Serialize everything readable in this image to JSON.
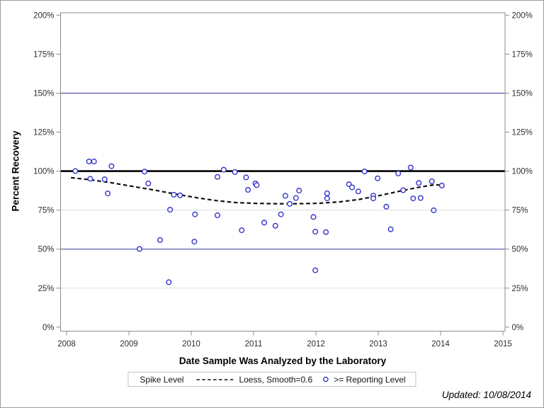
{
  "figure": {
    "footer_updated": "Updated: 10/08/2014"
  },
  "legend": {
    "items": [
      {
        "symbol": "none",
        "label": "Spike Level"
      },
      {
        "symbol": "dashed-line",
        "label": "Loess, Smooth=0.6"
      },
      {
        "symbol": "open-circle",
        "label": ">= Reporting Level"
      }
    ]
  },
  "chart_data": {
    "type": "scatter",
    "title": "",
    "xlabel": "Date Sample Was Analyzed by the Laboratory",
    "ylabel": "Percent Recovery",
    "x_tick_values": [
      2008,
      2009,
      2010,
      2011,
      2012,
      2013,
      2014,
      2015
    ],
    "x_tick_labels": [
      "2008",
      "2009",
      "2010",
      "2011",
      "2012",
      "2013",
      "2014",
      "2015"
    ],
    "y_tick_values": [
      0,
      25,
      50,
      75,
      100,
      125,
      150,
      175,
      200
    ],
    "y_tick_labels": [
      "0%",
      "25%",
      "50%",
      "75%",
      "100%",
      "125%",
      "150%",
      "175%",
      "200%"
    ],
    "xlim": [
      2007.9,
      2015.05
    ],
    "ylim_percent": [
      -2.6,
      201.6
    ],
    "layout_hints": {
      "y_axis_mirrored": true,
      "legend_position": "bottom-center",
      "grid": "partial"
    },
    "gridlines_percent": [
      25,
      75
    ],
    "gridline_color": "#dedede",
    "axis_color": "#8c8c8c",
    "tick_label_color": "#2f2f2f",
    "reference_lines": [
      {
        "name": "lower-reference-line",
        "y_percent": 50,
        "color": "#333399",
        "width": 1
      },
      {
        "name": "spike-level-line",
        "y_percent": 100,
        "color": "#000000",
        "width": 2.6
      },
      {
        "name": "upper-reference-line",
        "y_percent": 150,
        "color": "#333399",
        "width": 1
      }
    ],
    "series": [
      {
        "name": "Loess, Smooth=0.6",
        "type": "line",
        "line_style": "dashed",
        "color": "#0f0f0f",
        "points": [
          [
            2008.07,
            95.8
          ],
          [
            2008.35,
            94.6
          ],
          [
            2008.7,
            92.7
          ],
          [
            2009.05,
            90.3
          ],
          [
            2009.4,
            87.9
          ],
          [
            2009.75,
            85.3
          ],
          [
            2010.1,
            82.9
          ],
          [
            2010.4,
            81.1
          ],
          [
            2010.7,
            79.9
          ],
          [
            2011.0,
            79.4
          ],
          [
            2011.35,
            79.1
          ],
          [
            2011.7,
            79.1
          ],
          [
            2012.05,
            79.4
          ],
          [
            2012.4,
            80.4
          ],
          [
            2012.7,
            81.9
          ],
          [
            2013.0,
            84.2
          ],
          [
            2013.3,
            86.8
          ],
          [
            2013.6,
            89.3
          ],
          [
            2013.9,
            91.3
          ],
          [
            2014.02,
            91.0
          ]
        ]
      },
      {
        "name": ">= Reporting Level",
        "type": "scatter",
        "marker": "open-circle",
        "color": "#3434cb",
        "points": [
          [
            2008.14,
            100.1
          ],
          [
            2008.36,
            106.2
          ],
          [
            2008.44,
            106.2
          ],
          [
            2008.38,
            95.1
          ],
          [
            2008.61,
            94.8
          ],
          [
            2008.66,
            85.7
          ],
          [
            2008.72,
            103.2
          ],
          [
            2009.17,
            50.1
          ],
          [
            2009.25,
            99.7
          ],
          [
            2009.31,
            92.1
          ],
          [
            2009.5,
            55.8
          ],
          [
            2009.64,
            28.8
          ],
          [
            2009.66,
            75.3
          ],
          [
            2009.72,
            84.9
          ],
          [
            2009.82,
            84.5
          ],
          [
            2010.05,
            54.8
          ],
          [
            2010.06,
            72.3
          ],
          [
            2010.42,
            71.7
          ],
          [
            2010.42,
            96.3
          ],
          [
            2010.52,
            100.9
          ],
          [
            2010.7,
            99.4
          ],
          [
            2010.81,
            62.1
          ],
          [
            2010.88,
            96.0
          ],
          [
            2010.91,
            88.0
          ],
          [
            2011.03,
            92.1
          ],
          [
            2011.05,
            91.0
          ],
          [
            2011.17,
            67.0
          ],
          [
            2011.35,
            65.0
          ],
          [
            2011.44,
            72.3
          ],
          [
            2011.51,
            84.2
          ],
          [
            2011.58,
            79.0
          ],
          [
            2011.68,
            82.8
          ],
          [
            2011.73,
            87.5
          ],
          [
            2011.96,
            70.6
          ],
          [
            2011.99,
            61.2
          ],
          [
            2011.99,
            36.4
          ],
          [
            2012.16,
            60.9
          ],
          [
            2012.18,
            85.8
          ],
          [
            2012.18,
            82.5
          ],
          [
            2012.53,
            91.6
          ],
          [
            2012.58,
            89.6
          ],
          [
            2012.68,
            87.0
          ],
          [
            2012.78,
            99.8
          ],
          [
            2012.92,
            84.3
          ],
          [
            2012.92,
            82.5
          ],
          [
            2012.99,
            95.4
          ],
          [
            2013.13,
            77.2
          ],
          [
            2013.2,
            62.7
          ],
          [
            2013.32,
            98.5
          ],
          [
            2013.4,
            87.8
          ],
          [
            2013.52,
            102.3
          ],
          [
            2013.56,
            82.5
          ],
          [
            2013.65,
            92.4
          ],
          [
            2013.68,
            82.8
          ],
          [
            2013.86,
            93.5
          ],
          [
            2013.89,
            74.9
          ],
          [
            2014.02,
            90.8
          ]
        ]
      }
    ]
  }
}
